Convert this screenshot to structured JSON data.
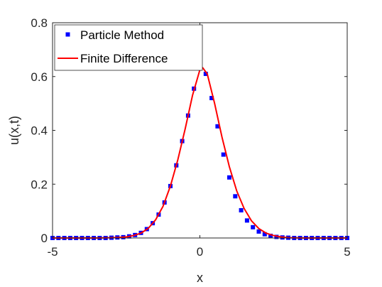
{
  "chart_data": {
    "type": "scatter",
    "xlabel": "x",
    "ylabel": "u(x,t)",
    "xlim": [
      -5,
      5
    ],
    "ylim": [
      0,
      0.8
    ],
    "x_ticks": [
      "-5",
      "0",
      "5"
    ],
    "y_ticks": [
      "0",
      "0.2",
      "0.4",
      "0.6",
      "0.8"
    ],
    "grid": false,
    "legend_position": "top-left",
    "series": [
      {
        "name": "Particle Method",
        "style": "markers",
        "color": "#0000ff",
        "x": [
          -5.0,
          -4.8,
          -4.6,
          -4.4,
          -4.2,
          -4.0,
          -3.8,
          -3.6,
          -3.4,
          -3.2,
          -3.0,
          -2.8,
          -2.6,
          -2.4,
          -2.2,
          -2.0,
          -1.8,
          -1.6,
          -1.4,
          -1.2,
          -1.0,
          -0.8,
          -0.6,
          -0.4,
          -0.2,
          0.0,
          0.2,
          0.4,
          0.6,
          0.8,
          1.0,
          1.2,
          1.4,
          1.6,
          1.8,
          2.0,
          2.2,
          2.4,
          2.6,
          2.8,
          3.0,
          3.2,
          3.4,
          3.6,
          3.8,
          4.0,
          4.2,
          4.4,
          4.6,
          4.8,
          5.0
        ],
        "y": [
          0.0,
          0.0,
          0.0,
          0.0,
          0.0,
          0.0,
          0.0,
          0.0,
          0.0,
          0.0,
          0.001,
          0.002,
          0.003,
          0.006,
          0.011,
          0.019,
          0.033,
          0.055,
          0.087,
          0.132,
          0.193,
          0.27,
          0.36,
          0.455,
          0.555,
          0.63,
          0.61,
          0.52,
          0.415,
          0.31,
          0.225,
          0.155,
          0.103,
          0.065,
          0.04,
          0.024,
          0.014,
          0.008,
          0.004,
          0.002,
          0.001,
          0.0,
          0.0,
          0.0,
          0.0,
          0.0,
          0.0,
          0.0,
          0.0,
          0.0,
          0.0
        ]
      },
      {
        "name": "Finite Difference",
        "style": "line",
        "color": "#ff0000",
        "x": [
          -5.0,
          -4.5,
          -4.0,
          -3.5,
          -3.0,
          -2.75,
          -2.5,
          -2.25,
          -2.0,
          -1.75,
          -1.5,
          -1.25,
          -1.0,
          -0.75,
          -0.5,
          -0.25,
          0.0,
          0.1,
          0.25,
          0.5,
          0.75,
          1.0,
          1.25,
          1.5,
          1.75,
          2.0,
          2.25,
          2.5,
          2.75,
          3.0,
          3.5,
          4.0,
          4.5,
          5.0
        ],
        "y": [
          0.0,
          0.0,
          0.0,
          0.0,
          0.001,
          0.002,
          0.004,
          0.009,
          0.018,
          0.036,
          0.068,
          0.118,
          0.193,
          0.29,
          0.405,
          0.53,
          0.625,
          0.632,
          0.61,
          0.5,
          0.375,
          0.265,
          0.175,
          0.11,
          0.064,
          0.035,
          0.018,
          0.009,
          0.004,
          0.001,
          0.0,
          0.0,
          0.0,
          0.0
        ]
      }
    ]
  }
}
